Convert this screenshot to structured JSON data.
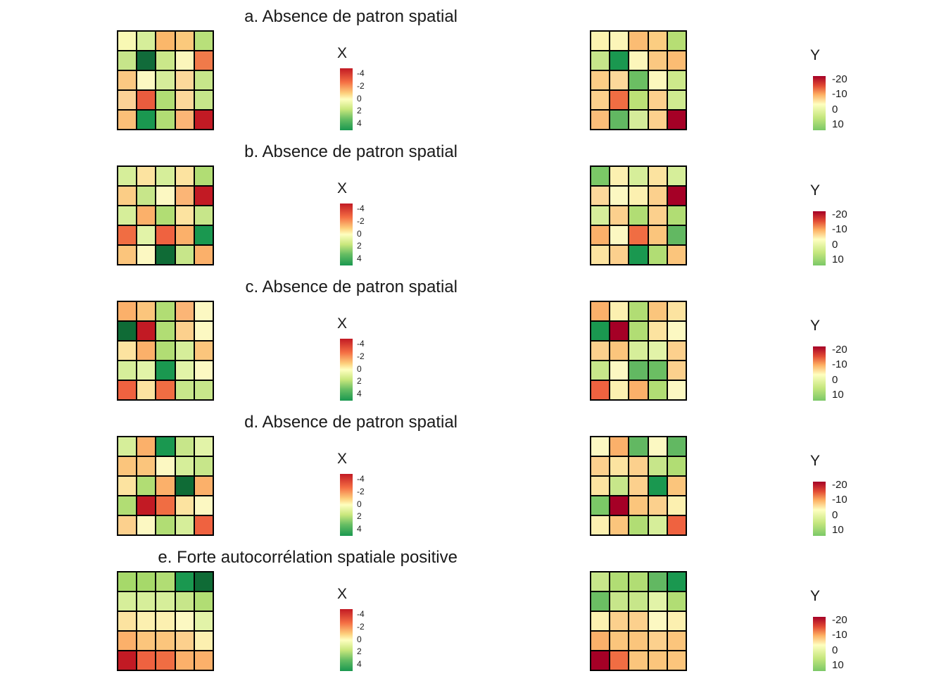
{
  "chart_data": [
    {
      "type": "heatmap",
      "title": "a.  Absence de patron spatial",
      "legend_x": {
        "title": "X",
        "ticks": [
          "-4",
          "-2",
          "0",
          "2",
          "4"
        ]
      },
      "legend_y": {
        "title": "Y",
        "ticks": [
          "-20",
          "-10",
          "0",
          "10"
        ]
      },
      "x_grid": [
        [
          "#f8f8b4",
          "#d6ee9a",
          "#fbb76a",
          "#fbc97c",
          "#b8e07a"
        ],
        [
          "#c6e58a",
          "#116b3a",
          "#cae88a",
          "#fbf6bb",
          "#f07a4a"
        ],
        [
          "#fbc882",
          "#fcf8c2",
          "#d6ec9a",
          "#fcd89a",
          "#c7e68a"
        ],
        [
          "#fcd296",
          "#ea5c3e",
          "#b1dd74",
          "#fcd89a",
          "#c6e68a"
        ],
        [
          "#fbbf78",
          "#1a9850",
          "#b1dd74",
          "#fbb576",
          "#c21a24"
        ]
      ],
      "y_grid": [
        [
          "#fcf3b0",
          "#fcf5b8",
          "#fbbc73",
          "#fbcd81",
          "#b6de74"
        ],
        [
          "#c6e58a",
          "#1a9850",
          "#fcf6ba",
          "#fbc881",
          "#fbbc73"
        ],
        [
          "#fdcd86",
          "#fcd89a",
          "#6bbe63",
          "#fcf8bd",
          "#cde98b"
        ],
        [
          "#fbd08c",
          "#f06d43",
          "#bce177",
          "#fcd08d",
          "#cfea90"
        ],
        [
          "#fbbd79",
          "#62b862",
          "#d5ec9a",
          "#fcd08d",
          "#a50026"
        ]
      ]
    },
    {
      "type": "heatmap",
      "title": "b.  Absence de patron spatial",
      "legend_x": {
        "title": "X",
        "ticks": [
          "-4",
          "-2",
          "0",
          "2",
          "4"
        ]
      },
      "legend_y": {
        "title": "Y",
        "ticks": [
          "-20",
          "-10",
          "0",
          "10"
        ]
      },
      "x_grid": [
        [
          "#d6ee9a",
          "#fce3a0",
          "#d6ee9a",
          "#fce3a0",
          "#b1dd74"
        ],
        [
          "#fbcd86",
          "#c7e68a",
          "#fcf8c2",
          "#fbb576",
          "#c21a24"
        ],
        [
          "#d6ee9a",
          "#fbb06a",
          "#b1dd74",
          "#fce3a0",
          "#c7e68a"
        ],
        [
          "#f06d43",
          "#e2f3a8",
          "#ef6240",
          "#fbb06a",
          "#1a9850"
        ],
        [
          "#fbc57c",
          "#fcf8c2",
          "#0f6b36",
          "#c7e68a",
          "#fbb06a"
        ]
      ],
      "y_grid": [
        [
          "#7bc867",
          "#fcf0b0",
          "#d6ee9a",
          "#fce3a0",
          "#d6ee9a"
        ],
        [
          "#fcd89a",
          "#fcf8c2",
          "#fcf0b0",
          "#fcd08d",
          "#a50026"
        ],
        [
          "#d6ee9a",
          "#fcd08d",
          "#b1dd74",
          "#fcd08d",
          "#b1dd74"
        ],
        [
          "#fbb06a",
          "#fcf8c2",
          "#f06d43",
          "#fbc57c",
          "#62b862"
        ],
        [
          "#fce3a0",
          "#fcd08d",
          "#1a9850",
          "#b1dd74",
          "#fbc57c"
        ]
      ]
    },
    {
      "type": "heatmap",
      "title": "c.  Absence de patron spatial",
      "legend_x": {
        "title": "X",
        "ticks": [
          "-4",
          "-2",
          "0",
          "2",
          "4"
        ]
      },
      "legend_y": {
        "title": "Y",
        "ticks": [
          "-20",
          "-10",
          "0",
          "10"
        ]
      },
      "x_grid": [
        [
          "#fbb06a",
          "#fbc57c",
          "#b1dd74",
          "#fbb576",
          "#fcf8c2"
        ],
        [
          "#0f6b36",
          "#c21a24",
          "#b1dd74",
          "#fcd08d",
          "#fcf8c2"
        ],
        [
          "#fce3a0",
          "#fbb06a",
          "#b1dd74",
          "#d6ee9a",
          "#fbc57c"
        ],
        [
          "#d6ee9a",
          "#e2f3a8",
          "#1a9850",
          "#e2f3a8",
          "#fcf8c2"
        ],
        [
          "#ef6240",
          "#fce3a0",
          "#f06d43",
          "#c7e68a",
          "#c7e68a"
        ]
      ],
      "y_grid": [
        [
          "#fbb06a",
          "#fcf0b0",
          "#b1dd74",
          "#fbc57c",
          "#fce3a0"
        ],
        [
          "#1a9850",
          "#a50026",
          "#b1dd74",
          "#fce3a0",
          "#fcf8c2"
        ],
        [
          "#fcd08d",
          "#fbc57c",
          "#d6ee9a",
          "#e2f3a8",
          "#fcd08d"
        ],
        [
          "#c7e68a",
          "#fcf8c2",
          "#62b862",
          "#6bbe63",
          "#fcd08d"
        ],
        [
          "#ef6240",
          "#fcf0b0",
          "#fbb06a",
          "#b1dd74",
          "#fcf8c2"
        ]
      ]
    },
    {
      "type": "heatmap",
      "title": "d.  Absence de patron spatial",
      "legend_x": {
        "title": "X",
        "ticks": [
          "-4",
          "-2",
          "0",
          "2",
          "4"
        ]
      },
      "legend_y": {
        "title": "Y",
        "ticks": [
          "-20",
          "-10",
          "0",
          "10"
        ]
      },
      "x_grid": [
        [
          "#d6ee9a",
          "#fbb06a",
          "#1a9850",
          "#c7e68a",
          "#e2f3a8"
        ],
        [
          "#fbc57c",
          "#fbc57c",
          "#fcf8c2",
          "#d6ee9a",
          "#c7e68a"
        ],
        [
          "#fce3a0",
          "#b1dd74",
          "#fbb06a",
          "#0f6b36",
          "#fbb06a"
        ],
        [
          "#b1dd74",
          "#c21a24",
          "#f06d43",
          "#fce3a0",
          "#fcf8c2"
        ],
        [
          "#fcd08d",
          "#fcf8c2",
          "#b1dd74",
          "#d6ee9a",
          "#ef6240"
        ]
      ],
      "y_grid": [
        [
          "#fcf8c2",
          "#fbb06a",
          "#62b862",
          "#fcf8c2",
          "#62b862"
        ],
        [
          "#fcd08d",
          "#fce3a0",
          "#fcd08d",
          "#c7e68a",
          "#b1dd74"
        ],
        [
          "#fce3a0",
          "#c7e68a",
          "#fcd08d",
          "#1a9850",
          "#fbc57c"
        ],
        [
          "#7bc867",
          "#a50026",
          "#fbc57c",
          "#fcd08d",
          "#fcf0b0"
        ],
        [
          "#fcf0b0",
          "#fbc57c",
          "#b1dd74",
          "#d6ee9a",
          "#ef6240"
        ]
      ]
    },
    {
      "type": "heatmap",
      "title": "e. Forte autocorrélation spatiale positive",
      "legend_x": {
        "title": "X",
        "ticks": [
          "-4",
          "-2",
          "0",
          "2",
          "4"
        ]
      },
      "legend_y": {
        "title": "Y",
        "ticks": [
          "-20",
          "-10",
          "0",
          "10"
        ]
      },
      "x_grid": [
        [
          "#a6d96a",
          "#a6d96a",
          "#b1dd74",
          "#1a9850",
          "#0f6b36"
        ],
        [
          "#d6ee9a",
          "#d6ee9a",
          "#d6ee9a",
          "#c7e68a",
          "#b1dd74"
        ],
        [
          "#fce3a0",
          "#fcf0b0",
          "#fcf0b0",
          "#fcf8c2",
          "#e2f3a8"
        ],
        [
          "#fbb06a",
          "#fbc57c",
          "#fbc57c",
          "#fcd08d",
          "#fcf0b0"
        ],
        [
          "#c21a24",
          "#ef6240",
          "#f06d43",
          "#fbb06a",
          "#fbb06a"
        ]
      ],
      "y_grid": [
        [
          "#c7e68a",
          "#b1dd74",
          "#b1dd74",
          "#62b862",
          "#1a9850"
        ],
        [
          "#6bbe63",
          "#c7e68a",
          "#c7e68a",
          "#e2f3a8",
          "#b1dd74"
        ],
        [
          "#fcf0b0",
          "#fcd08d",
          "#fcd08d",
          "#fcf8c2",
          "#fcf0b0"
        ],
        [
          "#fbb06a",
          "#fbc57c",
          "#fbc57c",
          "#fcd08d",
          "#fbc57c"
        ],
        [
          "#a50026",
          "#f06d43",
          "#fbc57c",
          "#fbc57c",
          "#fbc57c"
        ]
      ]
    }
  ]
}
